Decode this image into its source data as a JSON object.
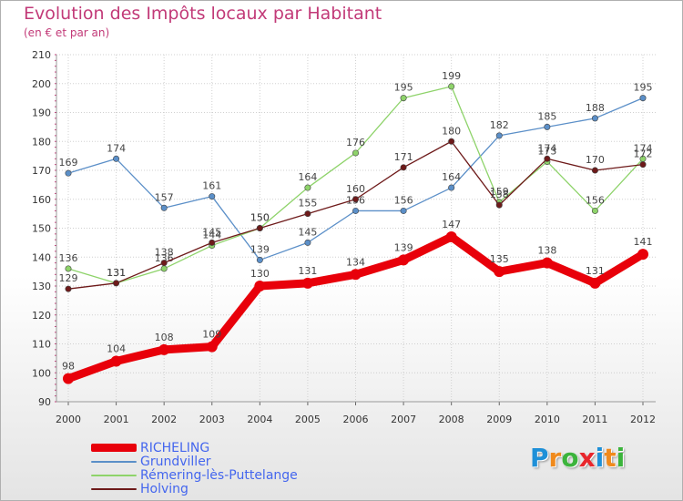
{
  "header": {
    "title": "Evolution des Impôts locaux par Habitant",
    "subtitle": "(en € et par an)"
  },
  "logo": {
    "text": "Proxiti",
    "letters": [
      {
        "ch": "P",
        "color": "#1e90d8"
      },
      {
        "ch": "r",
        "color": "#f08a1c"
      },
      {
        "ch": "o",
        "color": "#3cb43c"
      },
      {
        "ch": "x",
        "color": "#e8262c"
      },
      {
        "ch": "i",
        "color": "#1e90d8"
      },
      {
        "ch": "t",
        "color": "#f08a1c"
      },
      {
        "ch": "i",
        "color": "#3cb43c"
      }
    ]
  },
  "chart_data": {
    "type": "line",
    "title": "Evolution des Impôts locaux par Habitant",
    "subtitle": "(en € et par an)",
    "xlabel": "",
    "ylabel": "",
    "x": [
      "2000",
      "2001",
      "2002",
      "2003",
      "2004",
      "2005",
      "2006",
      "2007",
      "2008",
      "2009",
      "2010",
      "2011",
      "2012"
    ],
    "ylim": [
      90,
      210
    ],
    "yticks": [
      90,
      100,
      110,
      120,
      130,
      140,
      150,
      160,
      170,
      180,
      190,
      200,
      210
    ],
    "grid": true,
    "legend_position": "bottom-left",
    "series": [
      {
        "name": "RICHELING",
        "color": "#e8000a",
        "bold": true,
        "values": [
          98,
          104,
          108,
          109,
          130,
          131,
          134,
          139,
          147,
          135,
          138,
          131,
          141
        ]
      },
      {
        "name": "Grundviller",
        "color": "#5b8fc8",
        "bold": false,
        "values": [
          169,
          174,
          157,
          161,
          139,
          145,
          156,
          156,
          164,
          182,
          185,
          188,
          195
        ]
      },
      {
        "name": "Rémering-lès-Puttelange",
        "color": "#8ed36a",
        "bold": false,
        "values": [
          136,
          131,
          136,
          144,
          150,
          164,
          176,
          195,
          199,
          159,
          173,
          156,
          174
        ]
      },
      {
        "name": "Holving",
        "color": "#6e1a1a",
        "bold": false,
        "values": [
          129,
          131,
          138,
          145,
          150,
          155,
          160,
          171,
          180,
          158,
          174,
          170,
          172
        ]
      }
    ]
  }
}
